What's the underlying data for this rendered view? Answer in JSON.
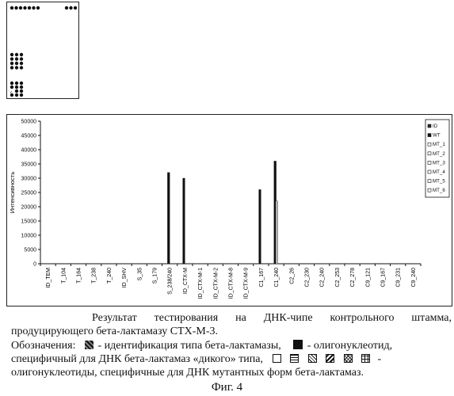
{
  "chip": {
    "marker_label": "✓"
  },
  "chart_data": {
    "type": "bar",
    "ylabel": "Интенсивность",
    "xlabel": "",
    "ylim": [
      0,
      50000
    ],
    "yticks": [
      0,
      5000,
      10000,
      15000,
      20000,
      25000,
      30000,
      35000,
      40000,
      45000,
      50000
    ],
    "grid": false,
    "legend_position": "right",
    "categories": [
      "ID_TEM",
      "T_104",
      "T_164",
      "T_238",
      "T_240",
      "ID_SHV",
      "S_35",
      "S_179",
      "S_238/240",
      "ID_CTX-M",
      "ID_CTX-M-1",
      "ID_CTX-M-2",
      "ID_CTX-M-8",
      "ID_CTX-M-9",
      "C1_167",
      "C1_240",
      "C2_26",
      "C2_230",
      "C2_240",
      "C2_253",
      "C2_278",
      "C9_121",
      "C9_167",
      "C9_231",
      "C9_240"
    ],
    "series": [
      {
        "name": "ID",
        "color": "#2a2a2a",
        "values": [
          0,
          0,
          0,
          0,
          0,
          0,
          0,
          0,
          0,
          0,
          0,
          0,
          0,
          0,
          0,
          0,
          0,
          0,
          0,
          0,
          0,
          0,
          0,
          0,
          0
        ]
      },
      {
        "name": "WT",
        "color": "#111111",
        "values": [
          0,
          0,
          0,
          0,
          0,
          0,
          0,
          0,
          32000,
          30000,
          0,
          0,
          0,
          0,
          26000,
          36000,
          0,
          0,
          0,
          0,
          0,
          0,
          0,
          0,
          0
        ]
      },
      {
        "name": "MT_1",
        "color": "#bdbdbd",
        "values": [
          0,
          0,
          0,
          0,
          0,
          0,
          0,
          0,
          0,
          0,
          0,
          0,
          0,
          0,
          0,
          22000,
          0,
          0,
          0,
          0,
          0,
          0,
          0,
          0,
          0
        ]
      },
      {
        "name": "MT_2",
        "color": "#a0a0a0",
        "values": [
          0,
          0,
          0,
          0,
          0,
          0,
          0,
          0,
          0,
          0,
          0,
          0,
          0,
          0,
          0,
          0,
          0,
          0,
          0,
          0,
          0,
          0,
          0,
          0,
          0
        ]
      },
      {
        "name": "MT_3",
        "color": "#8c8c8c",
        "values": [
          0,
          0,
          0,
          0,
          0,
          0,
          0,
          0,
          0,
          0,
          0,
          0,
          0,
          0,
          0,
          0,
          0,
          0,
          0,
          0,
          0,
          0,
          0,
          0,
          0
        ]
      },
      {
        "name": "MT_4",
        "color": "#777777",
        "values": [
          0,
          0,
          0,
          0,
          0,
          0,
          0,
          0,
          0,
          0,
          0,
          0,
          0,
          0,
          0,
          0,
          0,
          0,
          0,
          0,
          0,
          0,
          0,
          0,
          0
        ]
      },
      {
        "name": "MT_5",
        "color": "#666666",
        "values": [
          0,
          0,
          0,
          0,
          0,
          0,
          0,
          0,
          0,
          0,
          0,
          0,
          0,
          0,
          0,
          0,
          0,
          0,
          0,
          0,
          0,
          0,
          0,
          0,
          0
        ]
      },
      {
        "name": "MT_6",
        "color": "#555555",
        "values": [
          0,
          0,
          0,
          0,
          0,
          0,
          0,
          0,
          0,
          0,
          0,
          0,
          0,
          0,
          0,
          0,
          0,
          0,
          0,
          0,
          0,
          0,
          0,
          0,
          0
        ]
      }
    ]
  },
  "caption": {
    "text": "Результат тестирования на ДНК-чипе контрольного штамма, продуцирующего бета-лактамазу CTX-M-3."
  },
  "legend_text": {
    "prefix": "Обозначения:",
    "id_desc": "- идентификация типа бета-лактамазы,",
    "wt_desc": "- олигонуклеотид,",
    "wt_desc_cont": "специфичный для ДНК бета-лактамаз «дикого» типа,",
    "mt_dash": "-",
    "mt_desc": "олигонуклеотиды, специфичные для ДНК мутантных форм бета-лактамаз."
  },
  "figure": {
    "label": "Фиг. 4"
  }
}
